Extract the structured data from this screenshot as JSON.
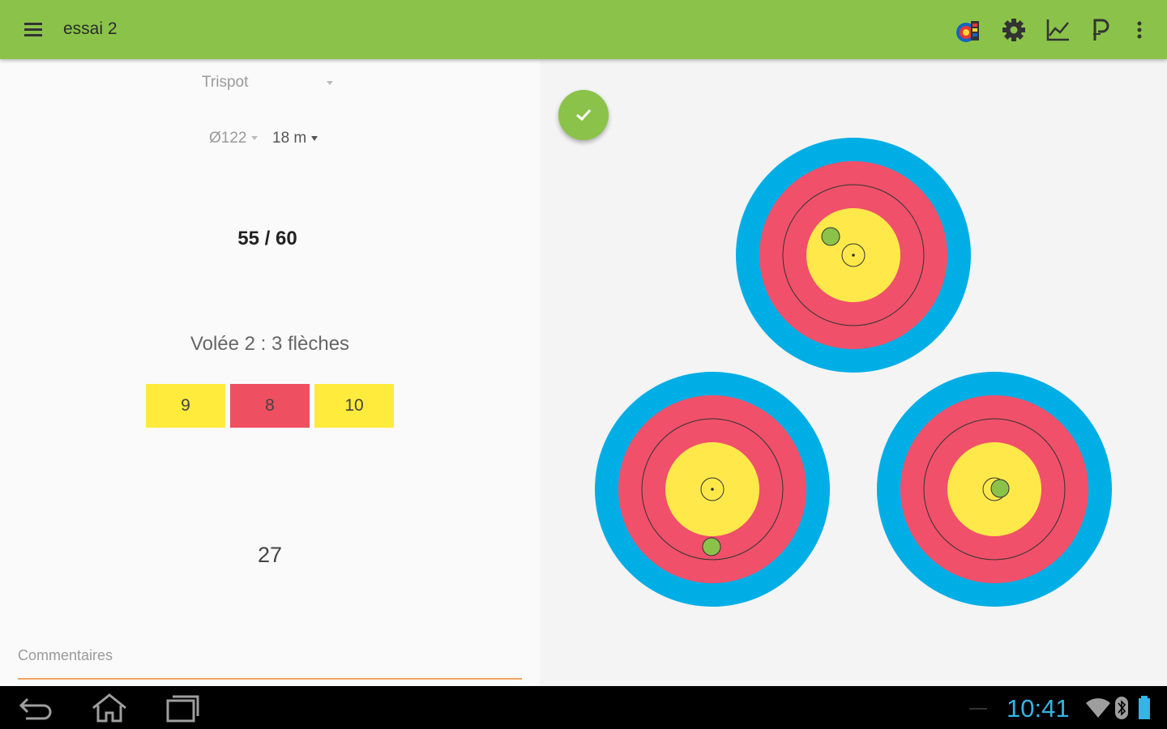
{
  "app": {
    "title": "essai 2",
    "accent_color": "#8bc34a",
    "actions": [
      "target-scoreboard-icon",
      "settings-gear-icon",
      "statistics-chart-icon",
      "parking-icon",
      "overflow-menu-icon"
    ]
  },
  "setup": {
    "target_type": "Trispot",
    "diameter": "Ø122",
    "distance": "18 m"
  },
  "score": {
    "total": "55 / 60",
    "end_label": "Volée 2 : 3 flèches",
    "arrows": [
      {
        "value": "9",
        "color": "#ffeb3b"
      },
      {
        "value": "8",
        "color": "#ef5061"
      },
      {
        "value": "10",
        "color": "#ffeb3b"
      }
    ],
    "end_sum": "27"
  },
  "comment": {
    "placeholder": "Commentaires",
    "value": ""
  },
  "targets": {
    "ring_colors": {
      "blue": "#00aee6",
      "red": "#f0506a",
      "yellow": "#ffe94a"
    },
    "arrow_color": "#8bc34a"
  },
  "system_bar": {
    "time": "10:41",
    "time_color": "#33b5e5"
  }
}
